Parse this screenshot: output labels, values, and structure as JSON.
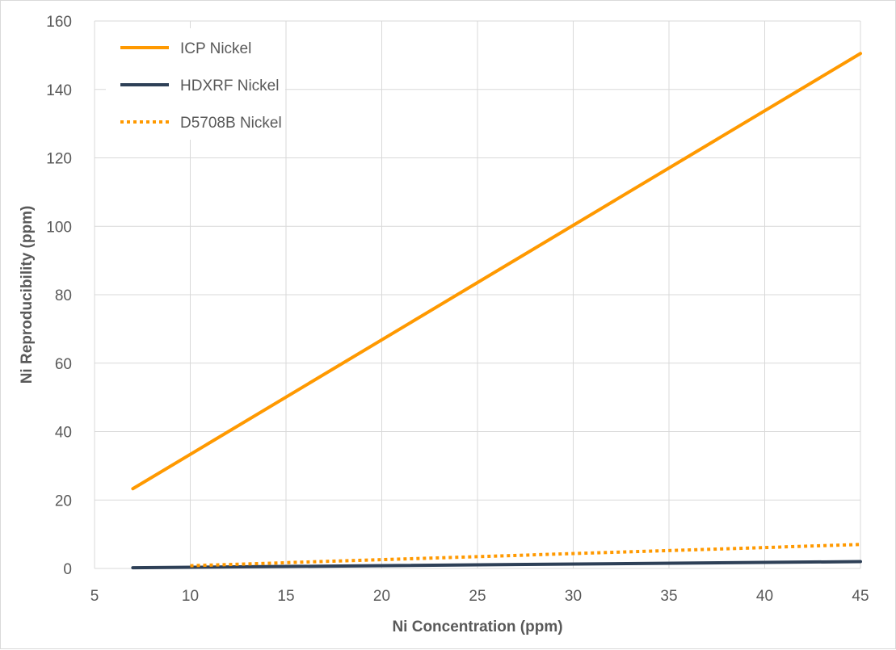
{
  "chart_data": {
    "type": "line",
    "title": "",
    "xlabel": "Ni Concentration (ppm)",
    "ylabel": "Ni Reproducibility (ppm)",
    "xlim": [
      5,
      45
    ],
    "ylim": [
      0,
      160
    ],
    "xticks": [
      "5",
      "10",
      "15",
      "20",
      "25",
      "30",
      "35",
      "40",
      "45"
    ],
    "yticks": [
      "0",
      "20",
      "40",
      "60",
      "80",
      "100",
      "120",
      "140",
      "160"
    ],
    "grid": "vertical and horizontal gridlines",
    "legend_position": "top-left",
    "series": [
      {
        "name": "ICP Nickel",
        "color": "#ff9900",
        "style": "solid",
        "points": [
          [
            7,
            23.3
          ],
          [
            45,
            150.5
          ]
        ]
      },
      {
        "name": "HDXRF Nickel",
        "color": "#2e4057",
        "style": "solid",
        "points": [
          [
            7,
            0.2
          ],
          [
            45,
            2.0
          ]
        ]
      },
      {
        "name": "D5708B Nickel",
        "color": "#ff9900",
        "style": "dotted",
        "points": [
          [
            10,
            0.8
          ],
          [
            45,
            7.0
          ]
        ]
      }
    ]
  }
}
